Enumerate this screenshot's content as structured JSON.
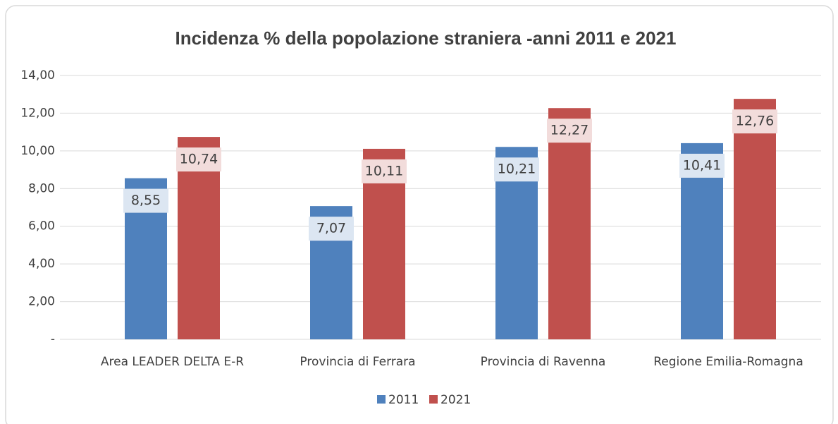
{
  "chart_data": {
    "type": "bar",
    "title": "Incidenza %  della popolazione straniera -anni 2011 e 2021",
    "categories": [
      "Area LEADER DELTA E-R",
      "Provincia di Ferrara",
      "Provincia di Ravenna",
      "Regione Emilia-Romagna"
    ],
    "series": [
      {
        "name": "2011",
        "color": "#4f81bd",
        "values": [
          8.55,
          7.07,
          10.21,
          10.41
        ],
        "value_labels": [
          "8,55",
          "7,07",
          "10,21",
          "10,41"
        ]
      },
      {
        "name": "2021",
        "color": "#c0504d",
        "values": [
          10.74,
          10.11,
          12.27,
          12.76
        ],
        "value_labels": [
          "10,74",
          "10,11",
          "12,27",
          "12,76"
        ]
      }
    ],
    "ylim": [
      0,
      14
    ],
    "yticks": [
      {
        "value": 0,
        "label": "-"
      },
      {
        "value": 2,
        "label": "2,00"
      },
      {
        "value": 4,
        "label": "4,00"
      },
      {
        "value": 6,
        "label": "6,00"
      },
      {
        "value": 8,
        "label": "8,00"
      },
      {
        "value": 10,
        "label": "10,00"
      },
      {
        "value": 12,
        "label": "12,00"
      },
      {
        "value": 14,
        "label": "14,00"
      }
    ],
    "grid": true
  }
}
